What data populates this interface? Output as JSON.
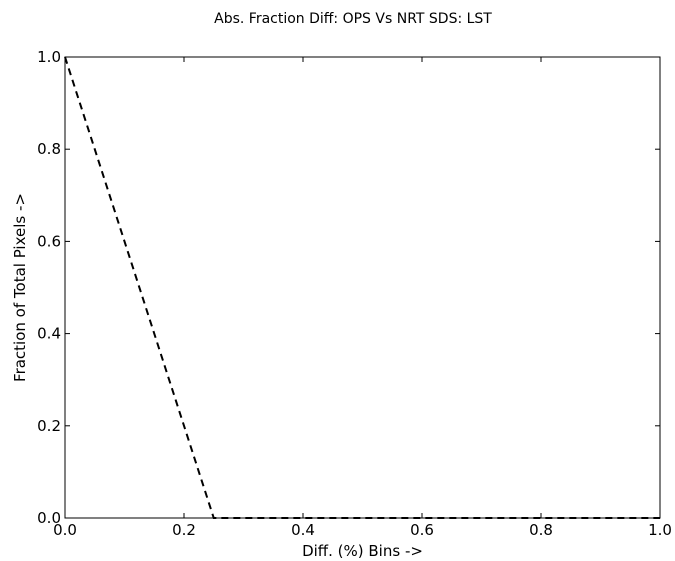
{
  "chart_data": {
    "type": "line",
    "title": "Abs. Fraction Diff: OPS Vs NRT SDS: LST",
    "xlabel": "Diff. (%) Bins ->",
    "ylabel": "Fraction of Total Pixels ->",
    "xlim": [
      0.0,
      1.0
    ],
    "ylim": [
      0.0,
      1.0
    ],
    "xticks": [
      "0.0",
      "0.2",
      "0.4",
      "0.6",
      "0.8",
      "1.0"
    ],
    "yticks": [
      "0.0",
      "0.2",
      "0.4",
      "0.6",
      "0.8",
      "1.0"
    ],
    "grid": false,
    "legend": "none",
    "series": [
      {
        "line_style": "dashed",
        "color": "#000000",
        "x": [
          0.0,
          0.25,
          0.5,
          0.75,
          1.0
        ],
        "y": [
          1.0,
          0.0,
          0.0,
          0.0,
          0.0
        ]
      }
    ]
  }
}
